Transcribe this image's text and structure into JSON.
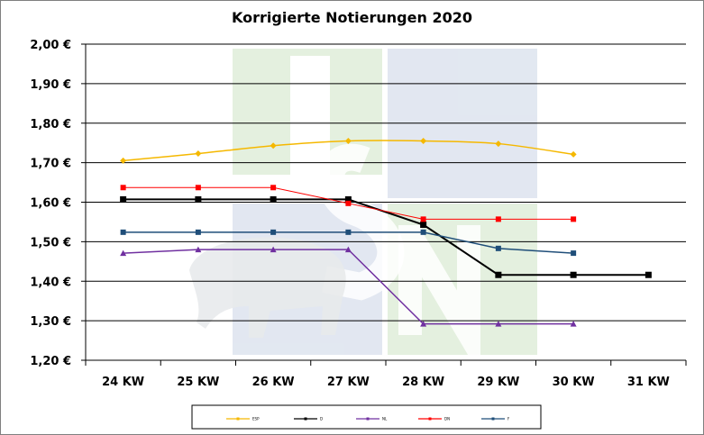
{
  "chart_data": {
    "type": "line",
    "title": "Korrigierte Notierungen 2020",
    "categories": [
      "24 KW",
      "25 KW",
      "26 KW",
      "27 KW",
      "28 KW",
      "29 KW",
      "30 KW",
      "31 KW"
    ],
    "y_tick_labels": [
      "1,20 €",
      "1,30 €",
      "1,40 €",
      "1,50 €",
      "1,60 €",
      "1,70 €",
      "1,80 €",
      "1,90 €",
      "2,00 €"
    ],
    "ylim": [
      1.2,
      2.0
    ],
    "grid": true,
    "legend_position": "bottom",
    "series": [
      {
        "name": "ESP",
        "color": "#F5B800",
        "marker": "diamond",
        "values": [
          1.705,
          1.723,
          1.743,
          1.755,
          1.755,
          1.748,
          1.721,
          null
        ]
      },
      {
        "name": "D",
        "color": "#000000",
        "marker": "square",
        "values": [
          1.607,
          1.607,
          1.607,
          1.607,
          1.543,
          1.416,
          1.416,
          1.416
        ]
      },
      {
        "name": "NL",
        "color": "#7030A0",
        "marker": "triangle",
        "values": [
          1.471,
          1.48,
          1.48,
          1.48,
          1.292,
          1.292,
          1.292,
          null
        ]
      },
      {
        "name": "DN",
        "color": "#FF0000",
        "marker": "square",
        "values": [
          1.637,
          1.637,
          1.637,
          1.597,
          1.557,
          1.557,
          1.557,
          null
        ]
      },
      {
        "name": "F",
        "color": "#1F4E79",
        "marker": "square",
        "values": [
          1.524,
          1.524,
          1.524,
          1.524,
          1.524,
          1.483,
          1.471,
          null
        ]
      }
    ]
  }
}
